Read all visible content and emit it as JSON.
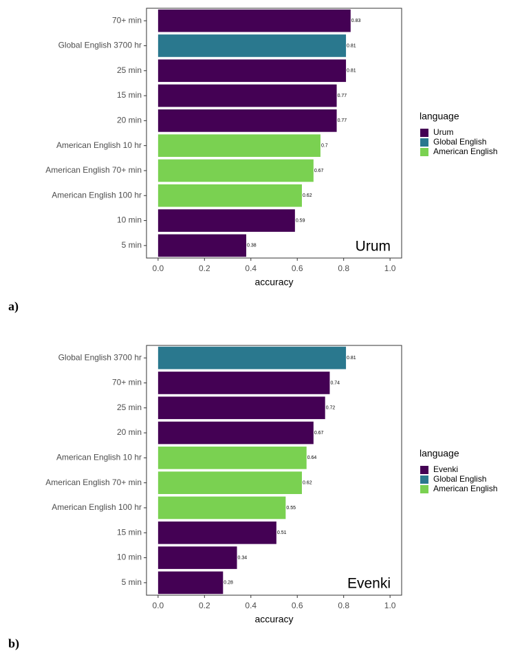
{
  "chart_data": [
    {
      "type": "bar",
      "orientation": "horizontal",
      "panel_label": "a)",
      "annotation": "Urum",
      "x_label": "accuracy",
      "legend_title": "language",
      "categories": [
        "70+ min",
        "Global English 3700 hr",
        "25 min",
        "15 min",
        "20 min",
        "American English 10 hr",
        "American English 70+ min",
        "American English 100 hr",
        "10 min",
        "5 min"
      ],
      "series": [
        {
          "name": "Urum",
          "color": "#440154",
          "values": [
            0.83,
            null,
            0.81,
            0.77,
            0.77,
            null,
            null,
            null,
            0.59,
            0.38
          ]
        },
        {
          "name": "Global English",
          "color": "#2a788e",
          "values": [
            null,
            0.81,
            null,
            null,
            null,
            null,
            null,
            null,
            null,
            null
          ]
        },
        {
          "name": "American English",
          "color": "#7ad151",
          "values": [
            null,
            null,
            null,
            null,
            null,
            0.7,
            0.67,
            0.62,
            null,
            null
          ]
        }
      ],
      "xlim": [
        -0.05,
        1.05
      ],
      "xticks": [
        {
          "value": 0,
          "label": "0.0"
        },
        0.2,
        0.4,
        0.6,
        0.8,
        {
          "value": 1,
          "label": "1.0"
        }
      ]
    },
    {
      "type": "bar",
      "orientation": "horizontal",
      "panel_label": "b)",
      "annotation": "Evenki",
      "x_label": "accuracy",
      "legend_title": "language",
      "categories": [
        "Global English 3700 hr",
        "70+ min",
        "25 min",
        "20 min",
        "American English 10 hr",
        "American English 70+ min",
        "American English 100 hr",
        "15 min",
        "10 min",
        "5 min"
      ],
      "series": [
        {
          "name": "Evenki",
          "color": "#440154",
          "values": [
            null,
            0.74,
            0.72,
            0.67,
            null,
            null,
            null,
            0.51,
            0.34,
            0.28
          ]
        },
        {
          "name": "Global English",
          "color": "#2a788e",
          "values": [
            0.81,
            null,
            null,
            null,
            null,
            null,
            null,
            null,
            null,
            null
          ]
        },
        {
          "name": "American English",
          "color": "#7ad151",
          "values": [
            null,
            null,
            null,
            null,
            0.64,
            0.62,
            0.55,
            null,
            null,
            null
          ]
        }
      ],
      "xlim": [
        -0.05,
        1.05
      ],
      "xticks": [
        {
          "value": 0,
          "label": "0.0"
        },
        0.2,
        0.4,
        0.6,
        0.8,
        {
          "value": 1,
          "label": "1.0"
        }
      ]
    }
  ]
}
